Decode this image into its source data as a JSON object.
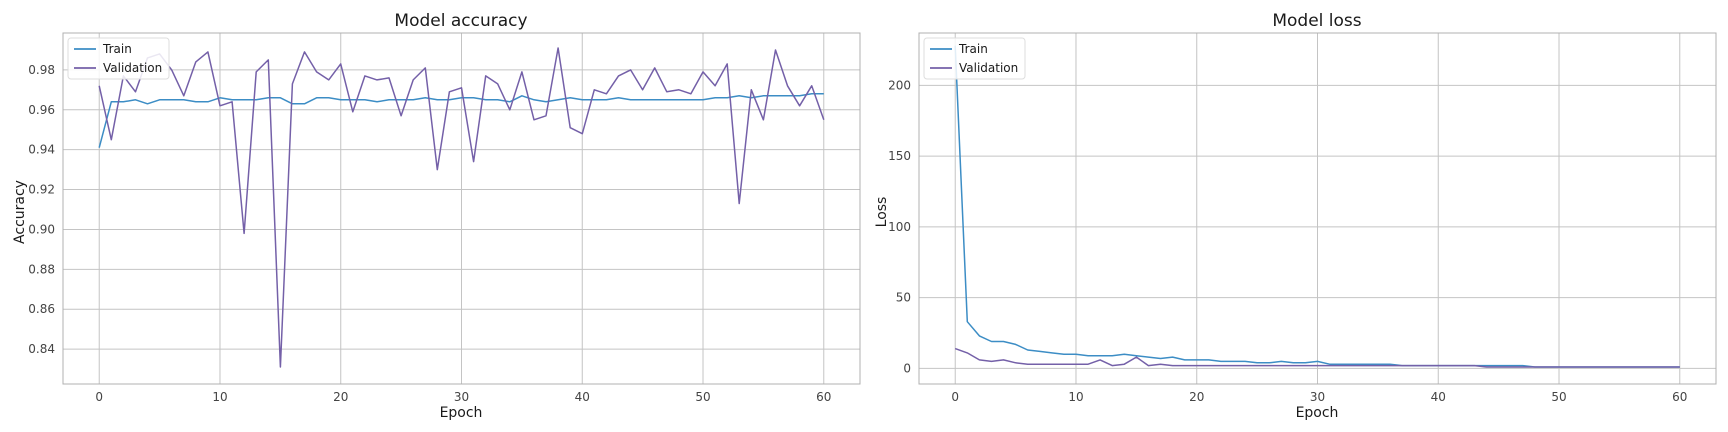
{
  "chart_data": [
    {
      "type": "line",
      "title": "Model accuracy",
      "xlabel": "Epoch",
      "ylabel": "Accuracy",
      "xlim": [
        -3,
        63
      ],
      "ylim": [
        0.8225,
        0.9985
      ],
      "xticks": [
        0,
        10,
        20,
        30,
        40,
        50,
        60
      ],
      "xtick_labels": [
        "0",
        "10",
        "20",
        "30",
        "40",
        "50",
        "60"
      ],
      "yticks": [
        0.84,
        0.86,
        0.88,
        0.9,
        0.92,
        0.94,
        0.96,
        0.98
      ],
      "ytick_labels": [
        "0.84",
        "0.86",
        "0.88",
        "0.90",
        "0.92",
        "0.94",
        "0.96",
        "0.98"
      ],
      "grid": true,
      "legend_position": "top-left",
      "x": [
        0,
        1,
        2,
        3,
        4,
        5,
        6,
        7,
        8,
        9,
        10,
        11,
        12,
        13,
        14,
        15,
        16,
        17,
        18,
        19,
        20,
        21,
        22,
        23,
        24,
        25,
        26,
        27,
        28,
        29,
        30,
        31,
        32,
        33,
        34,
        35,
        36,
        37,
        38,
        39,
        40,
        41,
        42,
        43,
        44,
        45,
        46,
        47,
        48,
        49,
        50,
        51,
        52,
        53,
        54,
        55,
        56,
        57,
        58,
        59,
        60
      ],
      "series": [
        {
          "name": "Train",
          "color": "#3c8dc5",
          "values": [
            0.941,
            0.964,
            0.964,
            0.965,
            0.963,
            0.965,
            0.965,
            0.965,
            0.964,
            0.964,
            0.966,
            0.965,
            0.965,
            0.965,
            0.966,
            0.966,
            0.963,
            0.963,
            0.966,
            0.966,
            0.965,
            0.965,
            0.965,
            0.964,
            0.965,
            0.965,
            0.965,
            0.966,
            0.965,
            0.965,
            0.966,
            0.966,
            0.965,
            0.965,
            0.964,
            0.967,
            0.965,
            0.964,
            0.965,
            0.966,
            0.965,
            0.965,
            0.965,
            0.966,
            0.965,
            0.965,
            0.965,
            0.965,
            0.965,
            0.965,
            0.965,
            0.966,
            0.966,
            0.967,
            0.966,
            0.967,
            0.967,
            0.967,
            0.967,
            0.968,
            0.968
          ]
        },
        {
          "name": "Validation",
          "color": "#7460a8",
          "values": [
            0.972,
            0.945,
            0.977,
            0.969,
            0.986,
            0.988,
            0.98,
            0.967,
            0.984,
            0.989,
            0.962,
            0.964,
            0.898,
            0.979,
            0.985,
            0.831,
            0.973,
            0.989,
            0.979,
            0.975,
            0.983,
            0.959,
            0.977,
            0.975,
            0.976,
            0.957,
            0.975,
            0.981,
            0.93,
            0.969,
            0.971,
            0.934,
            0.977,
            0.973,
            0.96,
            0.979,
            0.955,
            0.957,
            0.991,
            0.951,
            0.948,
            0.97,
            0.968,
            0.977,
            0.98,
            0.97,
            0.981,
            0.969,
            0.97,
            0.968,
            0.979,
            0.972,
            0.983,
            0.913,
            0.97,
            0.955,
            0.99,
            0.972,
            0.962,
            0.972,
            0.955
          ]
        }
      ]
    },
    {
      "type": "line",
      "title": "Model loss",
      "xlabel": "Epoch",
      "ylabel": "Loss",
      "xlim": [
        -3,
        63
      ],
      "ylim": [
        -11,
        237
      ],
      "xticks": [
        0,
        10,
        20,
        30,
        40,
        50,
        60
      ],
      "xtick_labels": [
        "0",
        "10",
        "20",
        "30",
        "40",
        "50",
        "60"
      ],
      "yticks": [
        0,
        50,
        100,
        150,
        200
      ],
      "ytick_labels": [
        "0",
        "50",
        "100",
        "150",
        "200"
      ],
      "grid": true,
      "legend_position": "top-left",
      "x": [
        0,
        1,
        2,
        3,
        4,
        5,
        6,
        7,
        8,
        9,
        10,
        11,
        12,
        13,
        14,
        15,
        16,
        17,
        18,
        19,
        20,
        21,
        22,
        23,
        24,
        25,
        26,
        27,
        28,
        29,
        30,
        31,
        32,
        33,
        34,
        35,
        36,
        37,
        38,
        39,
        40,
        41,
        42,
        43,
        44,
        45,
        46,
        47,
        48,
        49,
        50,
        51,
        52,
        53,
        54,
        55,
        56,
        57,
        58,
        59,
        60
      ],
      "series": [
        {
          "name": "Train",
          "color": "#3c8dc5",
          "values": [
            228,
            33,
            23,
            19,
            19,
            17,
            13,
            12,
            11,
            10,
            10,
            9,
            9,
            9,
            10,
            9,
            8,
            7,
            8,
            6,
            6,
            6,
            5,
            5,
            5,
            4,
            4,
            5,
            4,
            4,
            5,
            3,
            3,
            3,
            3,
            3,
            3,
            2,
            2,
            2,
            2,
            2,
            2,
            2,
            2,
            2,
            2,
            2,
            1,
            1,
            1,
            1,
            1,
            1,
            1,
            1,
            1,
            1,
            1,
            1,
            1
          ]
        },
        {
          "name": "Validation",
          "color": "#7460a8",
          "values": [
            14,
            11,
            6,
            5,
            6,
            4,
            3,
            3,
            3,
            3,
            3,
            3,
            6,
            2,
            3,
            8,
            2,
            3,
            2,
            2,
            2,
            2,
            2,
            2,
            2,
            2,
            2,
            2,
            2,
            2,
            2,
            2,
            2,
            2,
            2,
            2,
            2,
            2,
            2,
            2,
            2,
            2,
            2,
            2,
            1,
            1,
            1,
            1,
            1,
            1,
            1,
            1,
            1,
            1,
            1,
            1,
            1,
            1,
            1,
            1,
            1
          ]
        }
      ]
    }
  ]
}
